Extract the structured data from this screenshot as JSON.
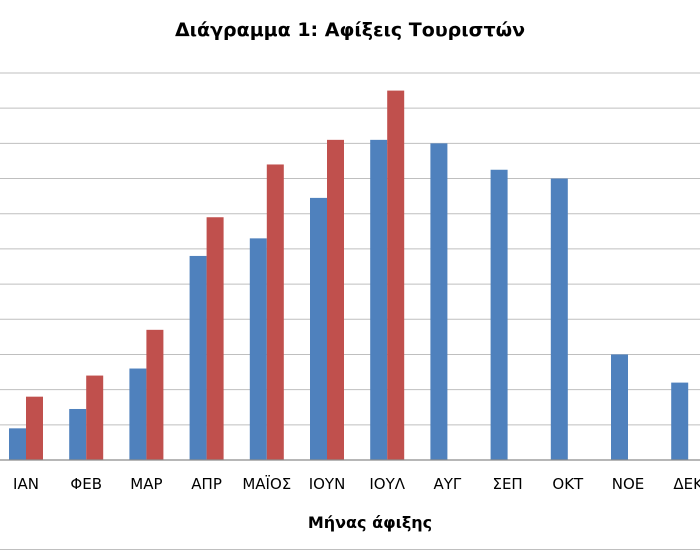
{
  "chart_data": {
    "type": "bar",
    "title": "Διάγραμμα 1: Αφίξεις Τουριστών",
    "xlabel": "Μήνας άφιξης",
    "ylabel": "",
    "categories": [
      "ΙΑΝ",
      "ΦΕΒ",
      "ΜΑΡ",
      "ΑΠΡ",
      "ΜΑΪΟΣ",
      "ΙΟΥΝ",
      "ΙΟΥΛ",
      "ΑΥΓ",
      "ΣΕΠ",
      "ΟΚΤ",
      "ΝΟΕ",
      "ΔΕΚ"
    ],
    "series": [
      {
        "name": "",
        "color": "#4F81BD",
        "values": [
          0.9,
          1.45,
          2.6,
          5.8,
          6.3,
          7.45,
          9.1,
          9.0,
          8.25,
          8.0,
          3.0,
          2.2
        ]
      },
      {
        "name": "",
        "color": "#C0504D",
        "values": [
          1.8,
          2.4,
          3.7,
          6.9,
          8.4,
          9.1,
          10.5,
          null,
          null,
          null,
          null,
          null
        ]
      }
    ],
    "ylim": [
      0,
      11
    ],
    "grid": true,
    "legend": "none"
  }
}
